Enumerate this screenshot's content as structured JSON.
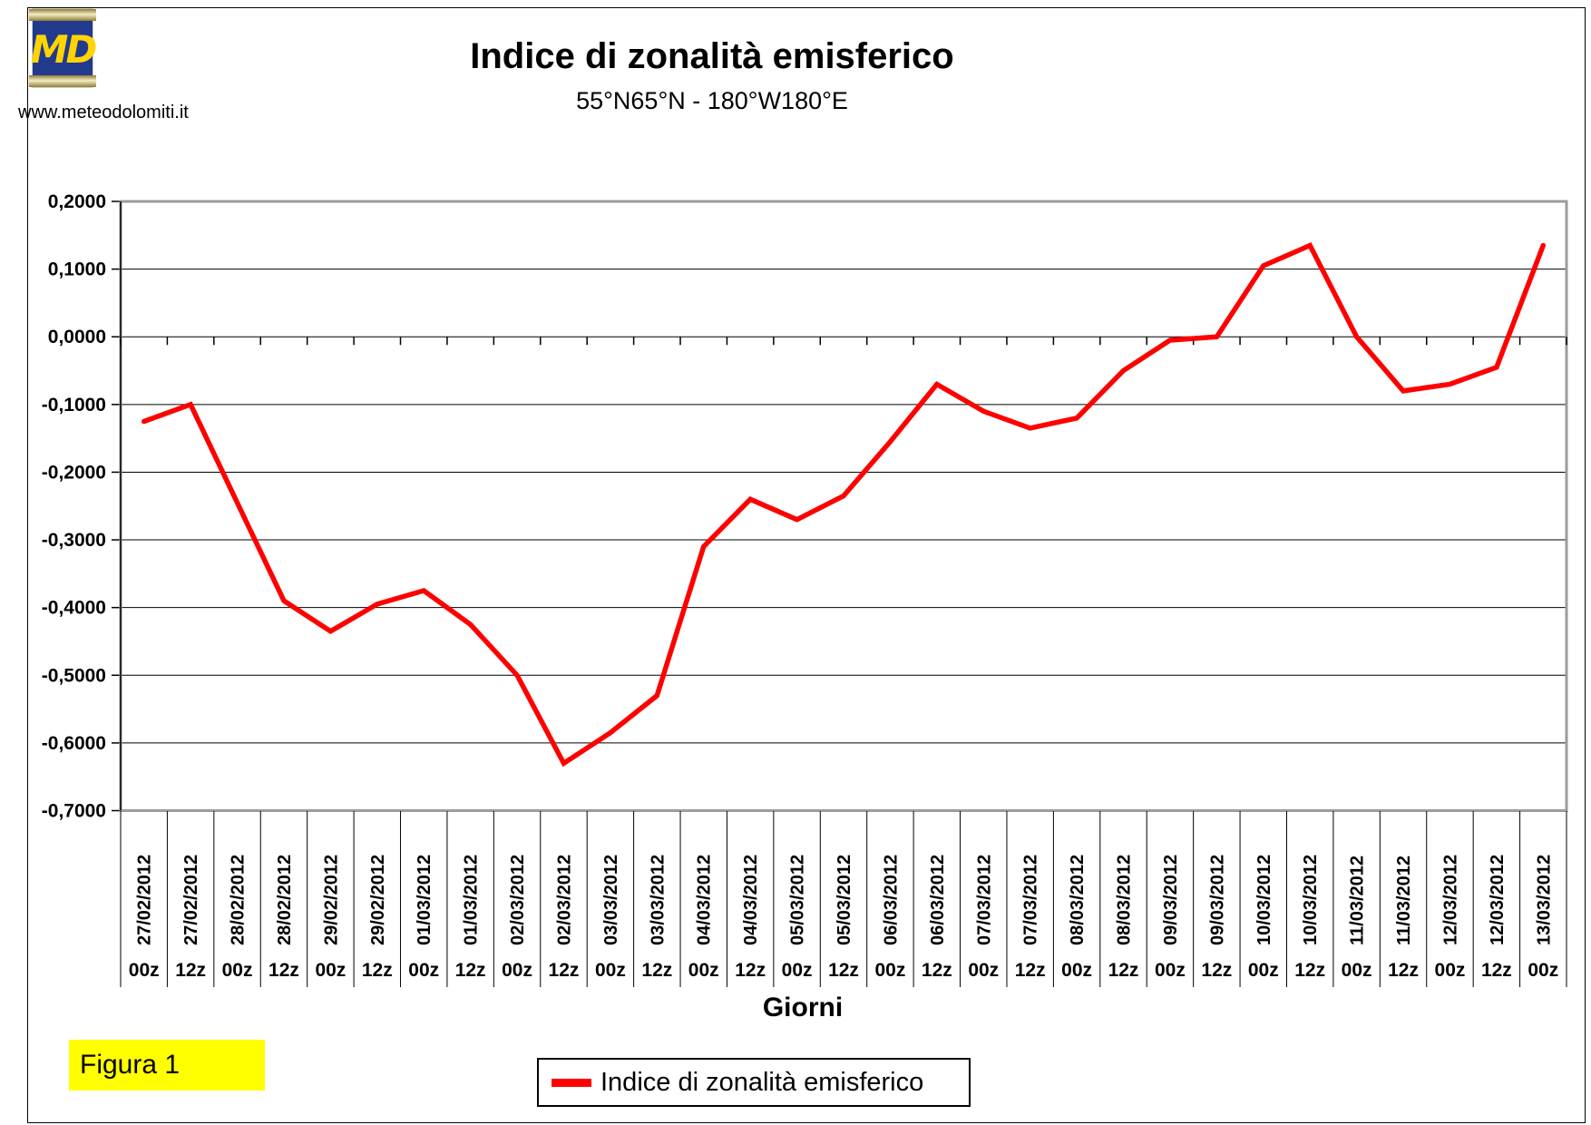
{
  "page": {
    "url_text": "www.meteodolomiti.it",
    "logo_text": "MD",
    "figura_label": "Figura 1"
  },
  "chart_data": {
    "type": "line",
    "title": "Indice di zonalità emisferico",
    "subtitle": "55°N65°N - 180°W180°E",
    "xlabel": "Giorni",
    "legend": [
      "Indice di zonalità emisferico"
    ],
    "legend_position": "bottom",
    "grid": true,
    "line_color": "#ff0000",
    "ylim": [
      -0.7,
      0.2
    ],
    "ytick_step": 0.1,
    "ytick_labels": [
      "0,2000",
      "0,1000",
      "0,0000",
      "-0,1000",
      "-0,2000",
      "-0,3000",
      "-0,4000",
      "-0,5000",
      "-0,6000",
      "-0,7000"
    ],
    "x_dates": [
      "27/02/2012",
      "27/02/2012",
      "28/02/2012",
      "28/02/2012",
      "29/02/2012",
      "29/02/2012",
      "01/03/2012",
      "01/03/2012",
      "02/03/2012",
      "02/03/2012",
      "03/03/2012",
      "03/03/2012",
      "04/03/2012",
      "04/03/2012",
      "05/03/2012",
      "05/03/2012",
      "06/03/2012",
      "06/03/2012",
      "07/03/2012",
      "07/03/2012",
      "08/03/2012",
      "08/03/2012",
      "09/03/2012",
      "09/03/2012",
      "10/03/2012",
      "10/03/2012",
      "11/03/2012",
      "11/03/2012",
      "12/03/2012",
      "12/03/2012",
      "13/03/2012"
    ],
    "x_hours": [
      "00z",
      "12z",
      "00z",
      "12z",
      "00z",
      "12z",
      "00z",
      "12z",
      "00z",
      "12z",
      "00z",
      "12z",
      "00z",
      "12z",
      "00z",
      "12z",
      "00z",
      "12z",
      "00z",
      "12z",
      "00z",
      "12z",
      "00z",
      "12z",
      "00z",
      "12z",
      "00z",
      "12z",
      "00z",
      "12z",
      "00z"
    ],
    "values": [
      -0.125,
      -0.1,
      -0.245,
      -0.39,
      -0.435,
      -0.395,
      -0.375,
      -0.425,
      -0.5,
      -0.63,
      -0.585,
      -0.53,
      -0.31,
      -0.24,
      -0.27,
      -0.235,
      -0.155,
      -0.07,
      -0.11,
      -0.135,
      -0.12,
      -0.05,
      -0.005,
      0.0,
      0.105,
      0.135,
      0.0,
      -0.08,
      -0.07,
      -0.045,
      0.135
    ]
  },
  "colors": {
    "line": "#ff0000",
    "plot_border": "#9c9c9c",
    "gridline": "#000000",
    "figura_bg": "#ffff00",
    "logo_bg": "#223a8e",
    "logo_text": "#ffd400"
  }
}
